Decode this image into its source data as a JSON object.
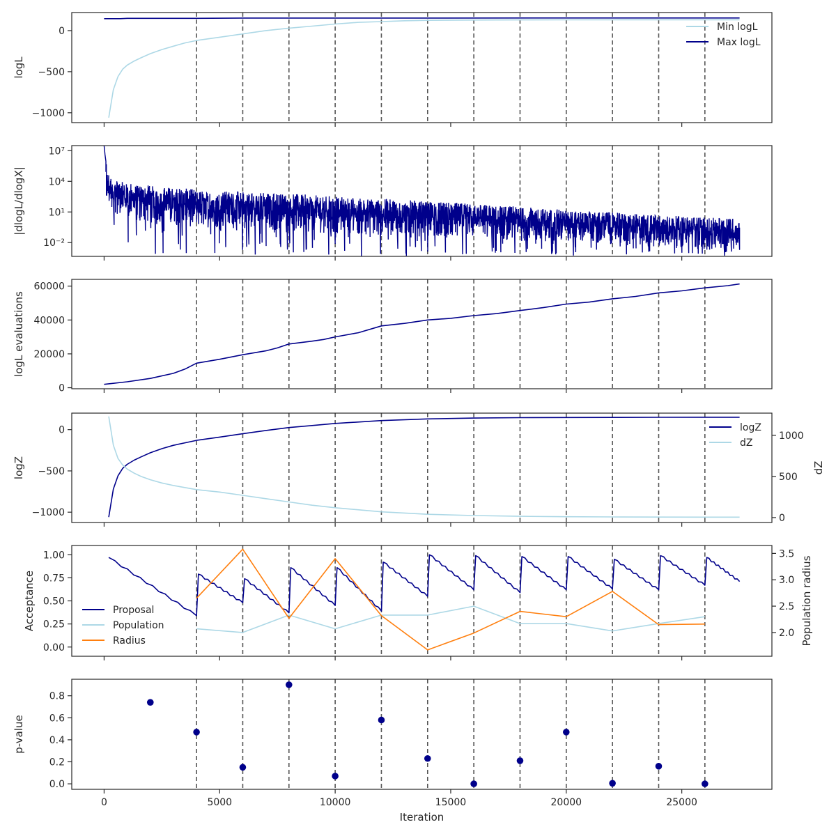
{
  "chart_data": {
    "type": "line",
    "shared_x": {
      "label": "Iteration",
      "lim": [
        -1400,
        28900
      ],
      "ticks": [
        0,
        5000,
        10000,
        15000,
        20000,
        25000
      ]
    },
    "vlines": [
      4000,
      6000,
      8000,
      10000,
      12000,
      14000,
      16000,
      18000,
      20000,
      22000,
      24000,
      26000
    ],
    "colors": {
      "navy": "#00008b",
      "lightblue": "#add8e6",
      "orange": "#ff7f0e",
      "vline": "#555555"
    },
    "panels": [
      {
        "id": "logl",
        "ylabel": "logL",
        "ylim": [
          -1120,
          220
        ],
        "yticks": [
          {
            "v": 0,
            "label": "0"
          },
          {
            "v": -500,
            "label": "−500"
          },
          {
            "v": -1000,
            "label": "−1000"
          }
        ],
        "legend": {
          "position": "upper right"
        },
        "series": [
          {
            "name": "Min logL",
            "color": "lightblue",
            "x": [
              200,
              400,
              600,
              800,
              1000,
              1300,
              1600,
              2000,
              2500,
              3000,
              3500,
              4000,
              5000,
              6000,
              7000,
              8000,
              9000,
              10000,
              11000,
              12000,
              13000,
              14000,
              16000,
              18000,
              20000,
              22000,
              24000,
              26000,
              27500
            ],
            "y": [
              -1060,
              -720,
              -560,
              -470,
              -420,
              -370,
              -330,
              -280,
              -230,
              -190,
              -150,
              -120,
              -80,
              -40,
              0,
              30,
              55,
              80,
              100,
              110,
              120,
              125,
              128,
              130,
              131,
              131,
              132,
              132,
              132
            ]
          },
          {
            "name": "Max logL",
            "color": "navy",
            "x": [
              0,
              700,
              1000,
              2000,
              4000,
              6000,
              8000,
              10000,
              14000,
              20000,
              27500
            ],
            "y": [
              145,
              145,
              150,
              150,
              150,
              153,
              153,
              153,
              153,
              154,
              154
            ]
          }
        ]
      },
      {
        "id": "dlogl",
        "ylabel": "|dlogL/dlogX|",
        "log": true,
        "ylim": [
          -3.35,
          7.5
        ],
        "yticks": [
          {
            "v": 7,
            "label": "10⁷"
          },
          {
            "v": 4,
            "label": "10⁴"
          },
          {
            "v": 1,
            "label": "10¹"
          },
          {
            "v": -2,
            "label": "10⁻²"
          }
        ],
        "series": [
          {
            "name": "",
            "color": "navy",
            "style": "noisy",
            "x_range": [
              0,
              27500
            ],
            "upper_log": [
              [
                0,
                7.5
              ],
              [
                50,
                6.4
              ],
              [
                150,
                4.9
              ],
              [
                400,
                4.2
              ],
              [
                1000,
                3.8
              ],
              [
                4000,
                3.2
              ],
              [
                8000,
                2.8
              ],
              [
                12000,
                2.3
              ],
              [
                16000,
                1.8
              ],
              [
                20000,
                1.2
              ],
              [
                24000,
                0.7
              ],
              [
                27500,
                0.3
              ]
            ],
            "lower_log": [
              [
                0,
                2.2
              ],
              [
                400,
                1.0
              ],
              [
                1000,
                0.2
              ],
              [
                4000,
                -0.5
              ],
              [
                8000,
                -0.9
              ],
              [
                12000,
                -1.3
              ],
              [
                16000,
                -1.6
              ],
              [
                20000,
                -2.0
              ],
              [
                24000,
                -2.3
              ],
              [
                27500,
                -2.6
              ]
            ],
            "spike_min_log": -3.35
          }
        ]
      },
      {
        "id": "evals",
        "ylabel": "logL evaluations",
        "ylim": [
          -600,
          64000
        ],
        "yticks": [
          {
            "v": 0,
            "label": "0"
          },
          {
            "v": 20000,
            "label": "20000"
          },
          {
            "v": 40000,
            "label": "40000"
          },
          {
            "v": 60000,
            "label": "60000"
          }
        ],
        "series": [
          {
            "name": "",
            "color": "navy",
            "x": [
              0,
              1000,
              2000,
              3000,
              3500,
              4000,
              5000,
              6000,
              7000,
              7500,
              8000,
              9000,
              9500,
              10000,
              11000,
              12000,
              13000,
              14000,
              15000,
              16000,
              17000,
              18000,
              19000,
              20000,
              21000,
              22000,
              23000,
              24000,
              25000,
              26000,
              27000,
              27500
            ],
            "y": [
              2000,
              3500,
              5500,
              8500,
              11000,
              14500,
              16800,
              19500,
              21800,
              23500,
              25800,
              27500,
              28500,
              30000,
              32500,
              36500,
              38000,
              40000,
              41000,
              42600,
              43800,
              45600,
              47300,
              49400,
              50600,
              52500,
              53900,
              56000,
              57200,
              59000,
              60300,
              61300
            ]
          }
        ]
      },
      {
        "id": "logz",
        "ylabel": "logZ",
        "ylim": [
          -1125,
          200
        ],
        "yticks": [
          {
            "v": 0,
            "label": "0"
          },
          {
            "v": -500,
            "label": "−500"
          },
          {
            "v": -1000,
            "label": "−1000"
          }
        ],
        "y2label": "dZ",
        "y2lim": [
          -60,
          1270
        ],
        "y2ticks": [
          {
            "v": 0,
            "label": "0"
          },
          {
            "v": 500,
            "label": "500"
          },
          {
            "v": 1000,
            "label": "1000"
          }
        ],
        "legend": {
          "position": "upper right"
        },
        "series": [
          {
            "name": "logZ",
            "color": "navy",
            "axis": "left",
            "x": [
              200,
              400,
              600,
              800,
              1000,
              1300,
              1600,
              2000,
              2500,
              3000,
              4000,
              5000,
              6000,
              7000,
              8000,
              9000,
              10000,
              12000,
              14000,
              16000,
              18000,
              20000,
              22000,
              24000,
              26000,
              27500
            ],
            "y": [
              -1060,
              -720,
              -560,
              -470,
              -420,
              -370,
              -330,
              -280,
              -230,
              -190,
              -130,
              -90,
              -50,
              -10,
              25,
              50,
              75,
              110,
              130,
              140,
              145,
              147,
              148,
              149,
              150,
              150
            ]
          },
          {
            "name": "dZ",
            "color": "lightblue",
            "axis": "right",
            "x": [
              200,
              400,
              600,
              800,
              1000,
              1300,
              1600,
              2000,
              2500,
              3000,
              4000,
              5000,
              6000,
              7000,
              8000,
              9000,
              10000,
              12000,
              14000,
              16000,
              18000,
              20000,
              22000,
              24000,
              26000,
              27500
            ],
            "y": [
              1230,
              880,
              720,
              640,
              590,
              540,
              500,
              460,
              420,
              390,
              340,
              310,
              270,
              230,
              190,
              150,
              120,
              70,
              40,
              25,
              15,
              10,
              8,
              6,
              5,
              5
            ]
          }
        ]
      },
      {
        "id": "accept",
        "ylabel": "Acceptance",
        "ylim": [
          -0.1,
          1.1
        ],
        "yticks": [
          {
            "v": 1.0,
            "label": "1.00"
          },
          {
            "v": 0.75,
            "label": "0.75"
          },
          {
            "v": 0.5,
            "label": "0.50"
          },
          {
            "v": 0.25,
            "label": "0.25"
          },
          {
            "v": 0.0,
            "label": "0.00"
          }
        ],
        "y2label": "Population radius",
        "y2lim": [
          1.55,
          3.65
        ],
        "y2ticks": [
          {
            "v": 3.5,
            "label": "3.5"
          },
          {
            "v": 3.0,
            "label": "3.0"
          },
          {
            "v": 2.5,
            "label": "2.5"
          },
          {
            "v": 2.0,
            "label": "2.0"
          }
        ],
        "legend": {
          "position": "lower left"
        },
        "series": [
          {
            "name": "Proposal",
            "color": "navy",
            "axis": "left",
            "style": "sawtooth",
            "start": [
              200,
              0.97
            ],
            "segments": [
              [
                4000,
                0.34
              ],
              [
                6000,
                0.48
              ],
              [
                8000,
                0.37
              ],
              [
                10000,
                0.45
              ],
              [
                12000,
                0.39
              ],
              [
                14000,
                0.55
              ],
              [
                16000,
                0.62
              ],
              [
                18000,
                0.59
              ],
              [
                20000,
                0.62
              ],
              [
                22000,
                0.63
              ],
              [
                24000,
                0.62
              ],
              [
                26000,
                0.67
              ],
              [
                27500,
                0.71
              ]
            ],
            "peaks": [
              0.79,
              0.74,
              0.86,
              0.86,
              0.92,
              1.0,
              0.99,
              0.98,
              0.98,
              0.95,
              0.99,
              0.97
            ]
          },
          {
            "name": "Population",
            "color": "lightblue",
            "axis": "right",
            "x": [
              4000,
              6000,
              8000,
              10000,
              12000,
              14000,
              16000,
              18000,
              20000,
              22000,
              24000,
              26000
            ],
            "y": [
              2.07,
              2.0,
              2.33,
              2.07,
              2.33,
              2.33,
              2.5,
              2.17,
              2.17,
              2.03,
              2.17,
              2.3
            ]
          },
          {
            "name": "Radius",
            "color": "orange",
            "axis": "right",
            "x": [
              4000,
              6000,
              8000,
              10000,
              12000,
              14000,
              16000,
              18000,
              20000,
              22000,
              24000,
              26000
            ],
            "y": [
              2.65,
              3.58,
              2.27,
              3.4,
              2.32,
              1.67,
              1.99,
              2.4,
              2.3,
              2.78,
              2.15,
              2.16
            ]
          }
        ]
      },
      {
        "id": "pvalue",
        "ylabel": "p-value",
        "xlabel": "Iteration",
        "ylim": [
          -0.05,
          0.95
        ],
        "yticks": [
          {
            "v": 0.8,
            "label": "0.8"
          },
          {
            "v": 0.6,
            "label": "0.6"
          },
          {
            "v": 0.4,
            "label": "0.4"
          },
          {
            "v": 0.2,
            "label": "0.2"
          },
          {
            "v": 0.0,
            "label": "0.0"
          }
        ],
        "series": [
          {
            "name": "",
            "color": "navy",
            "type": "scatter",
            "x": [
              2000,
              4000,
              6000,
              8000,
              10000,
              12000,
              14000,
              16000,
              18000,
              20000,
              22000,
              24000,
              26000
            ],
            "y": [
              0.74,
              0.47,
              0.15,
              0.9,
              0.07,
              0.58,
              0.23,
              0.0,
              0.21,
              0.47,
              0.005,
              0.16,
              0.0
            ]
          }
        ]
      }
    ]
  }
}
